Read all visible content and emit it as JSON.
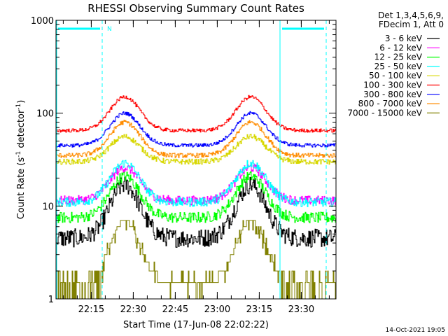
{
  "chart_data": {
    "type": "line",
    "title": "RHESSI Observing Summary Count Rates",
    "xlabel": "Start Time (17-Jun-08 22:02:22)",
    "ylabel_main": "Count Rate (s",
    "ylabel_sup1": "-1",
    "ylabel_mid": " detector",
    "ylabel_sup2": "-1",
    "ylabel_end": ")",
    "y_scale": "log",
    "ylim": [
      1,
      1000
    ],
    "xlim_minutes": [
      0,
      100
    ],
    "x_ticks": [
      {
        "label": "22:15",
        "minute": 12.6
      },
      {
        "label": "22:30",
        "minute": 27.6
      },
      {
        "label": "22:45",
        "minute": 42.6
      },
      {
        "label": "23:00",
        "minute": 57.6
      },
      {
        "label": "23:15",
        "minute": 72.6
      },
      {
        "label": "23:30",
        "minute": 87.6
      }
    ],
    "y_ticks": [
      {
        "label": "1",
        "value": 1
      },
      {
        "label": "10",
        "value": 10
      },
      {
        "label": "100",
        "value": 100
      },
      {
        "label": "1000",
        "value": 1000
      }
    ],
    "legend_header_1": "Det 1,3,4,5,6,9,",
    "legend_header_2": "FDecim 1, Att 0",
    "legend_position": "outside-right",
    "night_marker": "N",
    "night_intervals_minutes": [
      [
        0,
        16.5
      ],
      [
        80,
        96.5
      ]
    ],
    "peak_times_minutes": [
      24.5,
      69.5
    ],
    "series": [
      {
        "name": "3 - 6 keV",
        "color": "#000000",
        "base": 4.5,
        "peak": 17,
        "noise": 0.1
      },
      {
        "name": "6 - 12 keV",
        "color": "#ff00ff",
        "base": 11.5,
        "peak": 26,
        "noise": 0.05
      },
      {
        "name": "12 - 25 keV",
        "color": "#00ff00",
        "base": 7.5,
        "peak": 21,
        "noise": 0.06
      },
      {
        "name": "25 - 50 keV",
        "color": "#00ffff",
        "base": 11,
        "peak": 29,
        "noise": 0.05
      },
      {
        "name": "50 - 100 keV",
        "color": "#d7d700",
        "base": 30,
        "peak": 56,
        "noise": 0.03
      },
      {
        "name": "100 - 300 keV",
        "color": "#ff0000",
        "base": 65,
        "peak": 150,
        "noise": 0.02
      },
      {
        "name": "300 - 800 keV",
        "color": "#0000ff",
        "base": 45,
        "peak": 100,
        "noise": 0.02
      },
      {
        "name": "800 - 7000 keV",
        "color": "#ff8c00",
        "base": 35,
        "peak": 80,
        "noise": 0.025
      },
      {
        "name": "7000 - 15000 keV",
        "color": "#808000",
        "base": 1.5,
        "peak": 7,
        "noise": 0.0
      }
    ],
    "footer_date": "14-Oct-2021 19:05"
  }
}
